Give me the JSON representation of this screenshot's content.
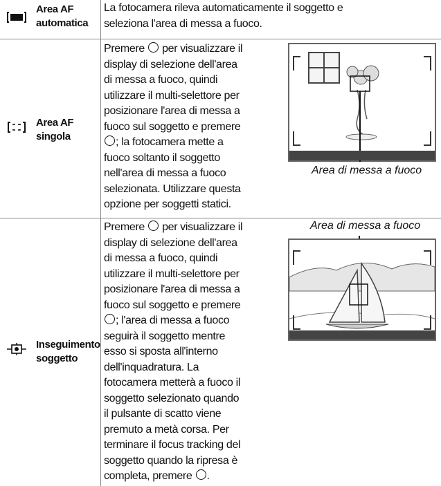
{
  "table": {
    "rows": [
      {
        "label": [
          "Area AF",
          "automatica"
        ],
        "lines": [
          "La fotocamera rileva automaticamente il soggetto e",
          "seleziona l'area di messa a fuoco."
        ]
      },
      {
        "label": [
          "Area AF",
          "singola"
        ],
        "lines": [
          {
            "before": "Premere ",
            "after": " per visualizzare il"
          },
          "display di selezione dell'area",
          "di messa a fuoco, quindi",
          "utilizzare il multi-selettore per",
          "posizionare l'area di messa a",
          "fuoco sul soggetto e premere",
          {
            "after": "; la fotocamera mette a"
          },
          "fuoco soltanto il soggetto",
          "nell'area di messa a fuoco",
          "selezionata. Utilizzare questa",
          "opzione per soggetti statici."
        ],
        "caption": "Area di messa a fuoco"
      },
      {
        "label": [
          "Inseguimento",
          "soggetto"
        ],
        "lines": [
          {
            "before": "Premere ",
            "after": " per visualizzare il"
          },
          "display di selezione dell'area",
          "di messa a fuoco, quindi",
          "utilizzare il multi-selettore per",
          "posizionare l'area di messa a",
          "fuoco sul soggetto e premere",
          {
            "after": "; l'area di messa a fuoco"
          },
          "seguirà il soggetto mentre",
          "esso si sposta all'interno",
          "dell'inquadratura. La",
          "fotocamera metterà a fuoco il",
          "soggetto selezionato quando",
          "il pulsante di scatto viene",
          "premuto a metà corsa. Per",
          "terminare il focus tracking del",
          "soggetto quando la ripresa è",
          {
            "before": "completa, premere ",
            "after": "."
          }
        ],
        "caption": "Area di messa a fuoco"
      }
    ]
  }
}
